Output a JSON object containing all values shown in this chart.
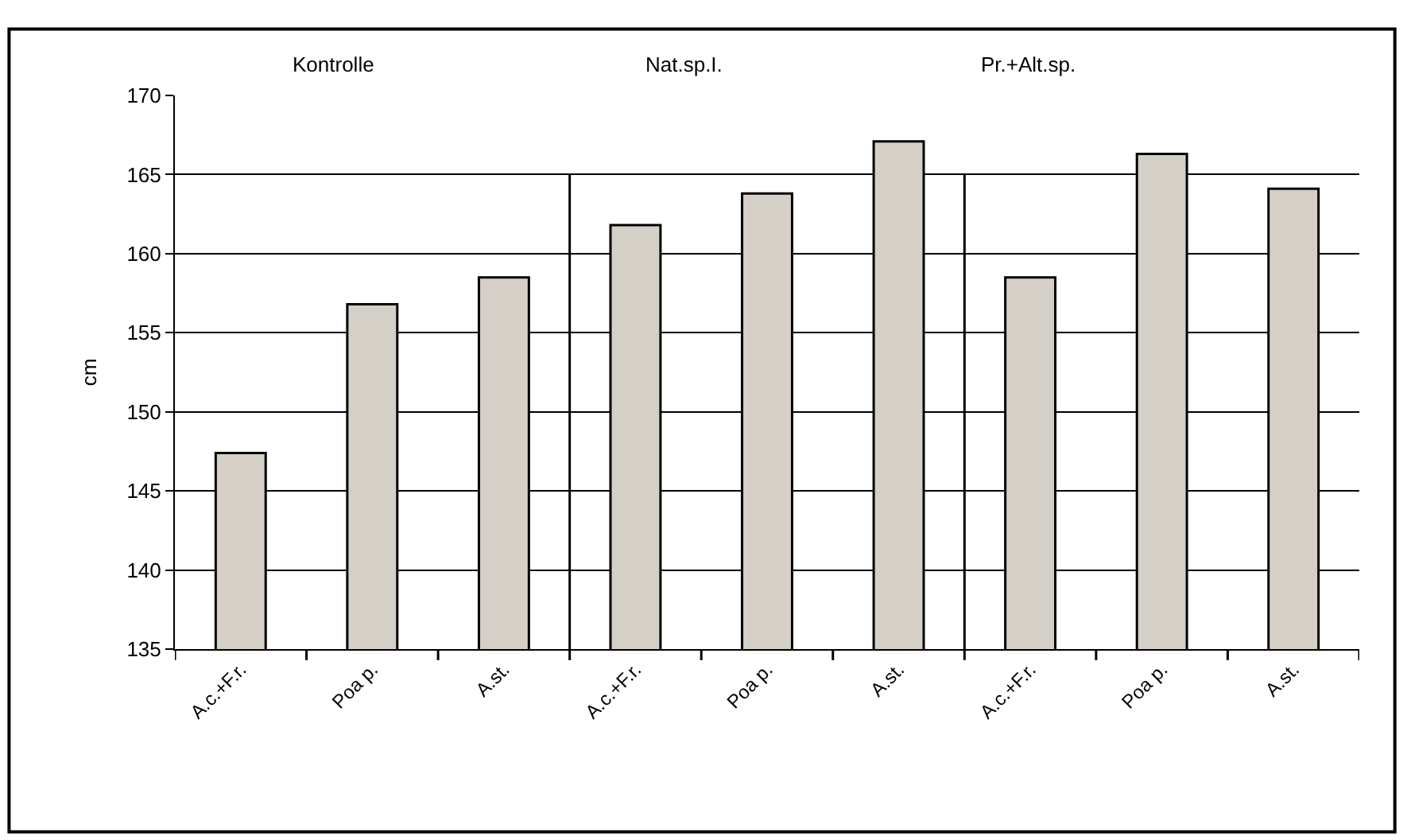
{
  "chart_data": {
    "type": "bar",
    "ylabel": "cm",
    "categories": [
      "A.c.+F.r.",
      "Poa p.",
      "A.st.",
      "A.c.+F.r.",
      "Poa p.",
      "A.st.",
      "A.c.+F.r.",
      "Poa p.",
      "A.st."
    ],
    "values": [
      147.4,
      156.8,
      158.5,
      161.8,
      163.8,
      167.1,
      158.5,
      166.3,
      164.1
    ],
    "color": "#d4d0c8",
    "ylim": [
      135,
      170
    ],
    "yticks": [
      135,
      140,
      145,
      150,
      155,
      160,
      165,
      170
    ],
    "grid": "y",
    "annotations": [
      "Kontrolle",
      "Nat.sp.I.",
      "Pr.+Alt.sp."
    ]
  }
}
